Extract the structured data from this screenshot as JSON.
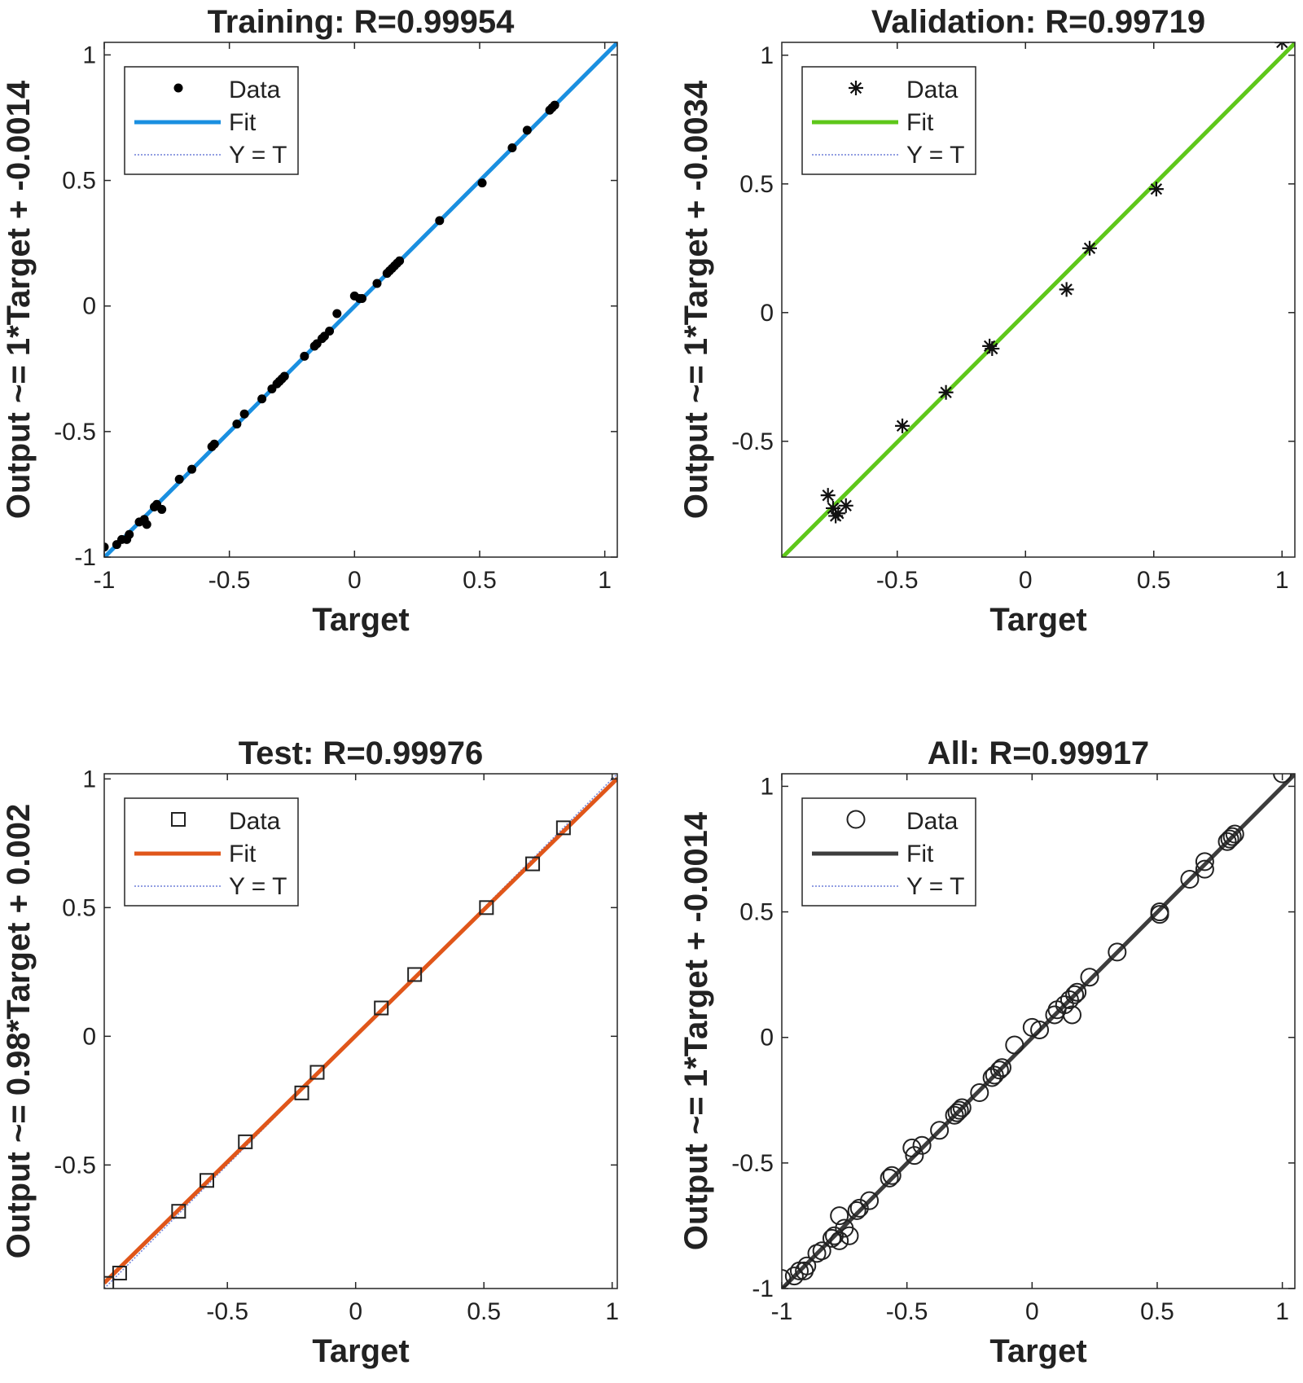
{
  "chart_data": [
    {
      "type": "scatter",
      "title": "Training: R=0.99954",
      "xlabel": "Target",
      "ylabel": "Output ~= 1*Target + -0.0014",
      "xlim": [
        -1,
        1.05
      ],
      "ylim": [
        -1,
        1.05
      ],
      "xticks": [
        -1,
        -0.5,
        0,
        0.5,
        1
      ],
      "yticks": [
        -1,
        -0.5,
        0,
        0.5,
        1
      ],
      "xtick_labels": [
        "-1",
        "-0.5",
        "0",
        "0.5",
        "1"
      ],
      "ytick_labels": [
        "-1",
        "-0.5",
        "0",
        "0.5",
        "1"
      ],
      "marker": "dot",
      "fit_color": "#1a8fe0",
      "fit_slope": 1,
      "fit_intercept": -0.0014,
      "legend": [
        "Data",
        "Fit",
        "Y = T"
      ],
      "x": [
        -1,
        -0.95,
        -0.93,
        -0.91,
        -0.9,
        -0.86,
        -0.84,
        -0.83,
        -0.8,
        -0.79,
        -0.77,
        -0.7,
        -0.65,
        -0.57,
        -0.56,
        -0.47,
        -0.44,
        -0.37,
        -0.33,
        -0.31,
        -0.3,
        -0.29,
        -0.28,
        -0.2,
        -0.16,
        -0.15,
        -0.13,
        -0.12,
        -0.1,
        -0.07,
        0,
        0.02,
        0.03,
        0.09,
        0.13,
        0.14,
        0.15,
        0.16,
        0.17,
        0.18,
        0.34,
        0.51,
        0.63,
        0.69,
        0.78,
        0.79,
        0.8
      ],
      "y": [
        -0.96,
        -0.95,
        -0.93,
        -0.93,
        -0.91,
        -0.86,
        -0.85,
        -0.87,
        -0.8,
        -0.79,
        -0.81,
        -0.69,
        -0.65,
        -0.56,
        -0.55,
        -0.47,
        -0.43,
        -0.37,
        -0.33,
        -0.31,
        -0.3,
        -0.29,
        -0.28,
        -0.2,
        -0.16,
        -0.15,
        -0.13,
        -0.12,
        -0.1,
        -0.03,
        0.04,
        0.03,
        0.03,
        0.09,
        0.13,
        0.14,
        0.15,
        0.16,
        0.17,
        0.18,
        0.34,
        0.49,
        0.63,
        0.7,
        0.78,
        0.79,
        0.8
      ]
    },
    {
      "type": "scatter",
      "title": "Validation: R=0.99719",
      "xlabel": "Target",
      "ylabel": "Output ~= 1*Target + -0.0034",
      "xlim": [
        -0.95,
        1.05
      ],
      "ylim": [
        -0.95,
        1.05
      ],
      "xticks": [
        -0.5,
        0,
        0.5,
        1
      ],
      "yticks": [
        -0.5,
        0,
        0.5,
        1
      ],
      "xtick_labels": [
        "-0.5",
        "0",
        "0.5",
        "1"
      ],
      "ytick_labels": [
        "-0.5",
        "0",
        "0.5",
        "1"
      ],
      "marker": "asterisk",
      "fit_color": "#5ec71a",
      "fit_slope": 1,
      "fit_intercept": -0.0034,
      "legend": [
        "Data",
        "Fit",
        "Y = T"
      ],
      "x": [
        -0.77,
        -0.75,
        -0.73,
        -0.74,
        -0.7,
        -0.48,
        -0.31,
        -0.14,
        -0.13,
        0.16,
        0.25,
        0.51,
        1
      ],
      "y": [
        -0.71,
        -0.76,
        -0.78,
        -0.79,
        -0.75,
        -0.44,
        -0.31,
        -0.13,
        -0.14,
        0.09,
        0.25,
        0.48,
        1.05
      ]
    },
    {
      "type": "scatter",
      "title": "Test: R=0.99976",
      "xlabel": "Target",
      "ylabel": "Output ~= 0.98*Target + 0.002",
      "xlim": [
        -0.98,
        1.02
      ],
      "ylim": [
        -0.98,
        1.02
      ],
      "xticks": [
        -0.5,
        0,
        0.5,
        1
      ],
      "yticks": [
        -0.5,
        0,
        0.5,
        1
      ],
      "xtick_labels": [
        "-0.5",
        "0",
        "0.5",
        "1"
      ],
      "ytick_labels": [
        "-0.5",
        "0",
        "0.5",
        "1"
      ],
      "marker": "square",
      "fit_color": "#e0561a",
      "fit_slope": 0.98,
      "fit_intercept": 0.002,
      "legend": [
        "Data",
        "Fit",
        "Y = T"
      ],
      "x": [
        -0.97,
        -0.92,
        -0.69,
        -0.58,
        -0.43,
        -0.21,
        -0.15,
        0.1,
        0.23,
        0.51,
        0.69,
        0.81
      ],
      "y": [
        -0.96,
        -0.92,
        -0.68,
        -0.56,
        -0.41,
        -0.22,
        -0.14,
        0.11,
        0.24,
        0.5,
        0.67,
        0.81
      ]
    },
    {
      "type": "scatter",
      "title": "All: R=0.99917",
      "xlabel": "Target",
      "ylabel": "Output ~= 1*Target + -0.0014",
      "xlim": [
        -1,
        1.05
      ],
      "ylim": [
        -1,
        1.05
      ],
      "xticks": [
        -1,
        -0.5,
        0,
        0.5,
        1
      ],
      "yticks": [
        -1,
        -0.5,
        0,
        0.5,
        1
      ],
      "xtick_labels": [
        "-1",
        "-0.5",
        "0",
        "0.5",
        "1"
      ],
      "ytick_labels": [
        "-1",
        "-0.5",
        "0",
        "0.5",
        "1"
      ],
      "marker": "circle",
      "fit_color": "#3d3d3d",
      "fit_slope": 1,
      "fit_intercept": -0.0014,
      "legend": [
        "Data",
        "Fit",
        "Y = T"
      ],
      "x": [
        -1,
        -0.95,
        -0.93,
        -0.91,
        -0.9,
        -0.86,
        -0.84,
        -0.8,
        -0.79,
        -0.77,
        -0.77,
        -0.75,
        -0.73,
        -0.7,
        -0.69,
        -0.65,
        -0.57,
        -0.56,
        -0.48,
        -0.47,
        -0.44,
        -0.37,
        -0.31,
        -0.3,
        -0.29,
        -0.28,
        -0.21,
        -0.16,
        -0.15,
        -0.13,
        -0.12,
        -0.07,
        0,
        0.03,
        0.09,
        0.1,
        0.13,
        0.15,
        0.16,
        0.17,
        0.18,
        0.23,
        0.34,
        0.51,
        0.51,
        0.63,
        0.69,
        0.69,
        0.78,
        0.79,
        0.8,
        0.81,
        1
      ],
      "y": [
        -0.96,
        -0.95,
        -0.93,
        -0.93,
        -0.91,
        -0.86,
        -0.85,
        -0.8,
        -0.79,
        -0.81,
        -0.71,
        -0.76,
        -0.79,
        -0.69,
        -0.68,
        -0.65,
        -0.56,
        -0.55,
        -0.44,
        -0.47,
        -0.43,
        -0.37,
        -0.31,
        -0.3,
        -0.29,
        -0.28,
        -0.22,
        -0.16,
        -0.15,
        -0.13,
        -0.12,
        -0.03,
        0.04,
        0.03,
        0.09,
        0.11,
        0.13,
        0.15,
        0.09,
        0.17,
        0.18,
        0.24,
        0.34,
        0.5,
        0.49,
        0.63,
        0.67,
        0.7,
        0.78,
        0.79,
        0.8,
        0.81,
        1.05
      ]
    }
  ]
}
